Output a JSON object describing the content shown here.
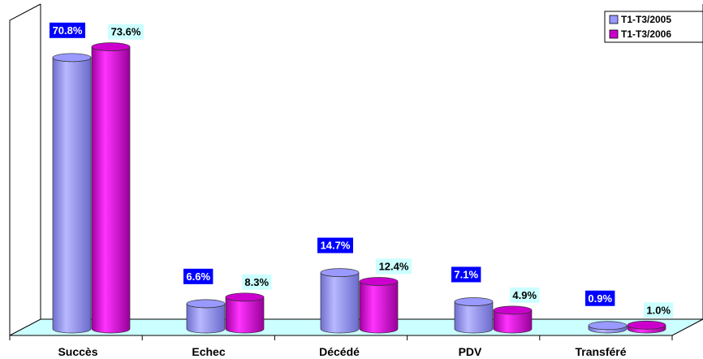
{
  "chart_data": {
    "type": "bar",
    "categories": [
      "Succès",
      "Echec",
      "Décédé",
      "PDV",
      "Transféré"
    ],
    "series": [
      {
        "name": "T1-T3/2005",
        "values": [
          70.8,
          6.6,
          14.7,
          7.1,
          0.9
        ],
        "labels": [
          "70.8%",
          "6.6%",
          "14.7%",
          "7.1%",
          "0.9%"
        ],
        "color": "#9999ff"
      },
      {
        "name": "T1-T3/2006",
        "values": [
          73.6,
          8.3,
          12.4,
          4.9,
          1.0
        ],
        "labels": [
          "73.6%",
          "8.3%",
          "12.4%",
          "4.9%",
          "1.0%"
        ],
        "color": "#cc00cc"
      }
    ],
    "ylim": [
      0,
      75
    ],
    "grid": false,
    "legend_position": "top-right",
    "label_colors": {
      "series0_bg": "#0000ff",
      "series0_text": "#ffffff",
      "series1_bg": "#ccffff",
      "series1_text": "#000000"
    },
    "floor_color": "#ccffff"
  }
}
